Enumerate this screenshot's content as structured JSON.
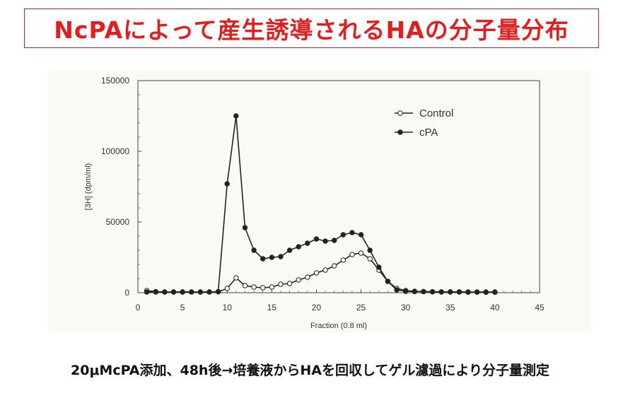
{
  "title": "NcPAによって産生誘導されるHAの分子量分布",
  "caption": "20μMcPA添加、48h後→培養液からHAを回収してゲル濾過により分子量測定",
  "chart_data": {
    "type": "line",
    "xlabel": "Fraction (0.8 ml)",
    "ylabel": "[3H] (dpm/ml)",
    "xlim": [
      0,
      45
    ],
    "ylim": [
      0,
      150000
    ],
    "x_ticks": [
      0,
      5,
      10,
      15,
      20,
      25,
      30,
      35,
      40,
      45
    ],
    "y_ticks": [
      0,
      50000,
      100000,
      150000
    ],
    "grid": false,
    "legend_position": "top-right",
    "series": [
      {
        "name": "Control",
        "marker": "open-circle",
        "color": "#222222",
        "x": [
          1,
          2,
          3,
          4,
          5,
          6,
          7,
          8,
          9,
          10,
          11,
          12,
          13,
          14,
          15,
          16,
          17,
          18,
          19,
          20,
          21,
          22,
          23,
          24,
          25,
          26,
          27,
          28,
          29,
          30,
          31,
          32,
          33,
          34,
          35,
          36,
          37,
          38,
          39,
          40
        ],
        "y": [
          1500,
          800,
          500,
          500,
          500,
          500,
          500,
          500,
          600,
          3000,
          10500,
          5000,
          4000,
          3500,
          4000,
          6000,
          6500,
          9000,
          11000,
          14000,
          16000,
          19000,
          23000,
          27000,
          28000,
          24000,
          16000,
          8000,
          3000,
          1500,
          1000,
          800,
          600,
          500,
          500,
          500,
          400,
          400,
          300,
          300
        ]
      },
      {
        "name": "cPA",
        "marker": "filled-circle",
        "color": "#222222",
        "x": [
          1,
          2,
          3,
          4,
          5,
          6,
          7,
          8,
          9,
          10,
          11,
          12,
          13,
          14,
          15,
          16,
          17,
          18,
          19,
          20,
          21,
          22,
          23,
          24,
          25,
          26,
          27,
          28,
          29,
          30,
          31,
          32,
          33,
          34,
          35,
          36,
          37,
          38,
          39,
          40
        ],
        "y": [
          500,
          500,
          500,
          500,
          500,
          500,
          500,
          500,
          800,
          77000,
          125000,
          46000,
          30000,
          24000,
          25000,
          25500,
          30000,
          32500,
          35000,
          38000,
          36500,
          37000,
          41000,
          42500,
          41000,
          30000,
          18000,
          8000,
          2000,
          1000,
          800,
          800,
          700,
          600,
          600,
          600,
          500,
          500,
          500,
          500
        ]
      }
    ]
  }
}
